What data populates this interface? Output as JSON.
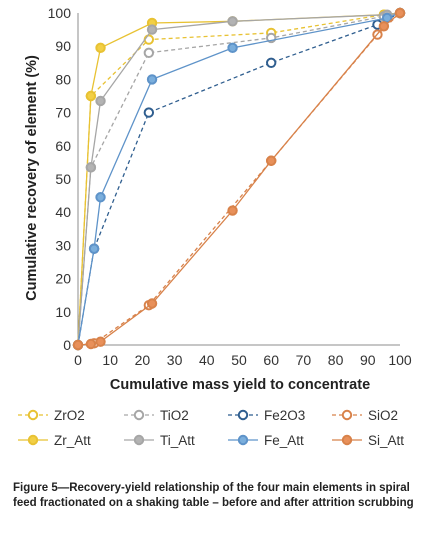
{
  "chart_data": {
    "type": "line",
    "title": "",
    "xlabel": "Cumulative mass yield to concentrate",
    "ylabel": "Cumulative recovery of element (%)",
    "xlim": [
      0,
      100
    ],
    "ylim": [
      0,
      100
    ],
    "xticks": [
      0,
      10,
      20,
      30,
      40,
      50,
      60,
      70,
      80,
      90,
      100
    ],
    "yticks": [
      0,
      10,
      20,
      30,
      40,
      50,
      60,
      70,
      80,
      90,
      100
    ],
    "grid": false,
    "legend_position": "bottom",
    "series": [
      {
        "name": "ZrO2",
        "style": "dashed",
        "color": "#e8c233",
        "fill": "#ffffff",
        "points": [
          [
            0,
            0
          ],
          [
            4,
            75
          ],
          [
            22,
            92
          ],
          [
            60,
            94
          ],
          [
            95,
            99.5
          ],
          [
            100,
            100
          ]
        ]
      },
      {
        "name": "Zr_Att",
        "style": "solid",
        "color": "#e8c233",
        "fill": "#f2cf45",
        "points": [
          [
            0,
            0
          ],
          [
            4,
            75
          ],
          [
            7,
            89.5
          ],
          [
            23,
            97
          ],
          [
            48,
            97.5
          ],
          [
            95,
            99.5
          ],
          [
            100,
            100
          ]
        ]
      },
      {
        "name": "TiO2",
        "style": "dashed",
        "color": "#a6a6a6",
        "fill": "#ffffff",
        "points": [
          [
            0,
            0
          ],
          [
            4,
            53.5
          ],
          [
            22,
            88
          ],
          [
            60,
            92.5
          ],
          [
            95,
            99
          ],
          [
            100,
            100
          ]
        ]
      },
      {
        "name": "Ti_Att",
        "style": "solid",
        "color": "#a6a6a6",
        "fill": "#b3b3b3",
        "points": [
          [
            0,
            0
          ],
          [
            4,
            53.5
          ],
          [
            7,
            73.5
          ],
          [
            23,
            95
          ],
          [
            48,
            97.5
          ],
          [
            96,
            99.5
          ],
          [
            100,
            100
          ]
        ]
      },
      {
        "name": "Fe2O3",
        "style": "dashed",
        "color": "#2f5e8f",
        "fill": "#ffffff",
        "points": [
          [
            0,
            0
          ],
          [
            5,
            29
          ],
          [
            22,
            70
          ],
          [
            60,
            85
          ],
          [
            93,
            96.5
          ],
          [
            100,
            100
          ]
        ]
      },
      {
        "name": "Fe_Att",
        "style": "solid",
        "color": "#5e93c9",
        "fill": "#7aaedc",
        "points": [
          [
            0,
            0
          ],
          [
            5,
            29
          ],
          [
            7,
            44.5
          ],
          [
            23,
            80
          ],
          [
            48,
            89.5
          ],
          [
            96,
            98.5
          ],
          [
            100,
            100
          ]
        ]
      },
      {
        "name": "SiO2",
        "style": "dashed",
        "color": "#d8824a",
        "fill": "#ffffff",
        "points": [
          [
            0,
            0
          ],
          [
            5,
            0.5
          ],
          [
            22,
            12
          ],
          [
            60,
            55.5
          ],
          [
            93,
            93.5
          ],
          [
            100,
            100
          ]
        ]
      },
      {
        "name": "Si_Att",
        "style": "solid",
        "color": "#d8824a",
        "fill": "#e8905a",
        "points": [
          [
            0,
            0
          ],
          [
            4,
            0.3
          ],
          [
            7,
            1
          ],
          [
            23,
            12.5
          ],
          [
            48,
            40.5
          ],
          [
            60,
            55.5
          ],
          [
            95,
            96
          ],
          [
            100,
            100
          ]
        ]
      }
    ]
  },
  "legend": {
    "row1": [
      "ZrO2",
      "TiO2",
      "Fe2O3",
      "SiO2"
    ],
    "row2": [
      "Zr_Att",
      "Ti_Att",
      "Fe_Att",
      "Si_Att"
    ]
  },
  "caption": "Figure 5—Recovery-yield relationship of the four main elements in spiral feed fractionated on a shaking table – before and after attrition scrubbing"
}
